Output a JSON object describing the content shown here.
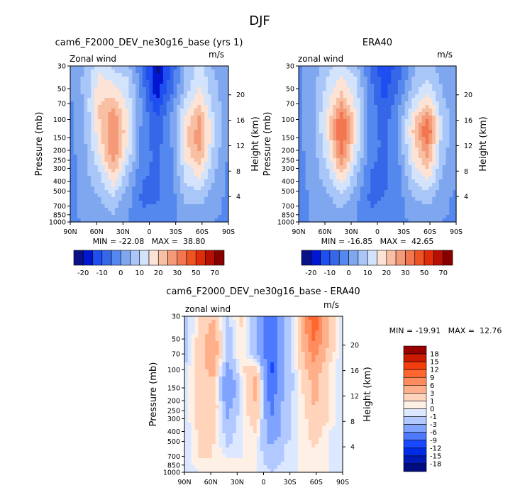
{
  "figure": {
    "title": "DJF",
    "yaxis_label": "Pressure (mb)",
    "yaxis_right_label": "Height (km)",
    "units": "m/s",
    "field_label": "Zonal wind"
  },
  "chart_data": [
    {
      "type": "heatmap",
      "id": "model",
      "title": "cam6_F2000_DEV_ne30g16_base (yrs 1)",
      "field_label": "Zonal wind",
      "units": "m/s",
      "xlabel": "",
      "ylabel": "Pressure (mb)",
      "ylabel_right": "Height (km)",
      "x_ticks": [
        "90N",
        "60N",
        "30N",
        "0",
        "30S",
        "60S",
        "90S"
      ],
      "y_ticks": [
        30,
        50,
        70,
        100,
        150,
        200,
        250,
        300,
        400,
        500,
        700,
        850,
        1000
      ],
      "height_ticks": [
        4,
        8,
        12,
        16,
        20
      ],
      "ylim": [
        1000,
        30
      ],
      "stats": "MIN = -22.08   MAX =  38.80",
      "colorbar_labels": [
        "-20",
        "-10",
        "0",
        "10",
        "20",
        "30",
        "50",
        "70"
      ],
      "levels": [
        -25,
        -20,
        -15,
        -10,
        -5,
        0,
        5,
        10,
        15,
        20,
        25,
        30,
        40,
        50,
        60,
        70
      ],
      "field": [
        [
          0,
          4,
          14,
          8,
          6,
          -4,
          -22,
          -10,
          6,
          12,
          4,
          0
        ],
        [
          1,
          6,
          16,
          14,
          10,
          -4,
          -20,
          -8,
          6,
          14,
          6,
          0
        ],
        [
          0,
          6,
          18,
          18,
          12,
          -2,
          -18,
          -6,
          8,
          16,
          7,
          1
        ],
        [
          -1,
          6,
          20,
          24,
          14,
          -1,
          -14,
          -2,
          12,
          20,
          8,
          1
        ],
        [
          -1,
          5,
          20,
          28,
          16,
          -1,
          -10,
          0,
          16,
          26,
          10,
          1
        ],
        [
          -1,
          5,
          18,
          30,
          16,
          -2,
          -8,
          -1,
          18,
          28,
          10,
          0
        ],
        [
          -1,
          4,
          16,
          30,
          15,
          -2,
          -7,
          -1,
          18,
          28,
          9,
          0
        ],
        [
          -2,
          3,
          14,
          28,
          12,
          -3,
          -6,
          -1,
          16,
          24,
          8,
          -1
        ],
        [
          -2,
          3,
          10,
          22,
          8,
          -4,
          -6,
          -2,
          12,
          18,
          6,
          -1
        ],
        [
          -2,
          3,
          8,
          16,
          5,
          -5,
          -6,
          -2,
          10,
          14,
          4,
          -1
        ],
        [
          -3,
          2,
          5,
          10,
          2,
          -6,
          -6,
          -3,
          6,
          8,
          2,
          -1
        ],
        [
          -2,
          2,
          3,
          6,
          1,
          -5,
          -4,
          -2,
          4,
          4,
          1,
          -1
        ],
        [
          -2,
          1,
          2,
          3,
          0,
          -4,
          -4,
          -2,
          2,
          2,
          0,
          -1
        ]
      ]
    },
    {
      "type": "heatmap",
      "id": "obs",
      "title": "ERA40",
      "field_label": "zonal wind",
      "units": "m/s",
      "xlabel": "",
      "ylabel": "Pressure (mb)",
      "ylabel_right": "Height (km)",
      "x_ticks": [
        "90N",
        "60N",
        "30N",
        "0",
        "30S",
        "60S",
        "90S"
      ],
      "y_ticks": [
        30,
        50,
        70,
        100,
        150,
        200,
        250,
        300,
        400,
        500,
        700,
        850,
        1000
      ],
      "height_ticks": [
        4,
        8,
        12,
        16,
        20
      ],
      "ylim": [
        1000,
        30
      ],
      "stats": "MIN = -16.85   MAX =  42.65",
      "colorbar_labels": [
        "-20",
        "-10",
        "0",
        "10",
        "20",
        "30",
        "50",
        "70"
      ],
      "levels": [
        -25,
        -20,
        -15,
        -10,
        -5,
        0,
        5,
        10,
        15,
        20,
        25,
        30,
        40,
        50,
        60,
        70
      ],
      "field": [
        [
          -1,
          2,
          8,
          12,
          6,
          -6,
          -14,
          -8,
          4,
          8,
          2,
          0
        ],
        [
          -1,
          3,
          10,
          16,
          10,
          -4,
          -13,
          -6,
          5,
          10,
          4,
          0
        ],
        [
          -1,
          3,
          12,
          20,
          12,
          -3,
          -12,
          -4,
          8,
          14,
          5,
          1
        ],
        [
          -1,
          4,
          14,
          26,
          14,
          -2,
          -10,
          -1,
          12,
          20,
          7,
          1
        ],
        [
          -1,
          4,
          16,
          34,
          16,
          -2,
          -8,
          1,
          18,
          30,
          9,
          1
        ],
        [
          -1,
          3,
          16,
          38,
          16,
          -3,
          -7,
          1,
          20,
          36,
          10,
          1
        ],
        [
          -1,
          3,
          14,
          34,
          14,
          -3,
          -6,
          1,
          18,
          30,
          8,
          1
        ],
        [
          -2,
          2,
          12,
          30,
          12,
          -4,
          -6,
          0,
          16,
          26,
          7,
          0
        ],
        [
          -2,
          2,
          9,
          22,
          8,
          -5,
          -6,
          -1,
          12,
          20,
          5,
          0
        ],
        [
          -2,
          2,
          7,
          16,
          5,
          -5,
          -6,
          -1,
          9,
          14,
          4,
          0
        ],
        [
          -2,
          1,
          4,
          9,
          2,
          -6,
          -5,
          -2,
          5,
          8,
          2,
          -1
        ],
        [
          -2,
          1,
          2,
          5,
          0,
          -5,
          -4,
          -2,
          3,
          4,
          1,
          -1
        ],
        [
          -2,
          1,
          1,
          2,
          0,
          -4,
          -3,
          -2,
          1,
          2,
          0,
          -1
        ]
      ]
    },
    {
      "type": "heatmap",
      "id": "diff",
      "title": "cam6_F2000_DEV_ne30g16_base - ERA40",
      "field_label": "zonal wind",
      "units": "m/s",
      "xlabel": "",
      "ylabel": "Pressure (mb)",
      "ylabel_right": "Height (km)",
      "x_ticks": [
        "90N",
        "60N",
        "30N",
        "0",
        "30S",
        "60S",
        "90S"
      ],
      "y_ticks": [
        30,
        50,
        70,
        100,
        150,
        200,
        250,
        300,
        400,
        500,
        700,
        850,
        1000
      ],
      "height_ticks": [
        4,
        8,
        12,
        16,
        20
      ],
      "ylim": [
        1000,
        30
      ],
      "stats": "MIN = -19.91   MAX =  12.76",
      "colorbar_labels": [
        "18",
        "15",
        "12",
        "9",
        "6",
        "3",
        "1",
        "0",
        "-1",
        "-3",
        "-6",
        "-9",
        "-12",
        "-15",
        "-18"
      ],
      "levels": [
        -21,
        -18,
        -15,
        -12,
        -9,
        -6,
        -3,
        -1,
        0,
        1,
        3,
        6,
        9,
        12,
        15,
        18
      ],
      "field": [
        [
          -2,
          1,
          3,
          -1,
          2,
          -3,
          -8,
          -3,
          2,
          12,
          3,
          -1
        ],
        [
          -2,
          1,
          4,
          -2,
          1,
          -3,
          -8,
          -3,
          2,
          11,
          3,
          -1
        ],
        [
          -2,
          2,
          5,
          -2,
          1,
          -3,
          -9,
          -3,
          2,
          9,
          3,
          -1
        ],
        [
          -2,
          2,
          5,
          -2,
          1,
          -2,
          -9,
          -3,
          1,
          7,
          2,
          -1
        ],
        [
          -1,
          2,
          4,
          -4,
          1,
          2,
          -10,
          -3,
          1,
          5,
          1,
          -1
        ],
        [
          -1,
          2,
          3,
          -6,
          0,
          4,
          -9,
          -3,
          0,
          4,
          1,
          -1
        ],
        [
          -1,
          2,
          3,
          -6,
          0,
          4,
          -8,
          -2,
          0,
          4,
          1,
          -1
        ],
        [
          -1,
          2,
          3,
          -4,
          0,
          3,
          -7,
          -2,
          0,
          3,
          1,
          -1
        ],
        [
          -1,
          2,
          2,
          -3,
          0,
          2,
          -6,
          -2,
          0,
          2,
          1,
          -1
        ],
        [
          -1,
          1,
          2,
          -2,
          0,
          1,
          -5,
          -2,
          0,
          2,
          0,
          -1
        ],
        [
          -1,
          1,
          1,
          -1,
          0,
          0,
          -3,
          -1,
          0,
          1,
          0,
          -1
        ],
        [
          -1,
          1,
          1,
          0,
          0,
          0,
          -2,
          -1,
          0,
          1,
          0,
          -1
        ],
        [
          -1,
          0,
          1,
          0,
          0,
          0,
          -1,
          0,
          0,
          0,
          0,
          -1
        ]
      ]
    }
  ],
  "colors": {
    "model_obs_colorbar": [
      "#0a1185",
      "#0016d0",
      "#1f4ff0",
      "#3567e8",
      "#5588ee",
      "#7fa7f0",
      "#a8c6f7",
      "#d3e3fb",
      "#fde3d5",
      "#f8bfa3",
      "#f59a79",
      "#f27650",
      "#ee5322",
      "#e12c09",
      "#b61004",
      "#870000"
    ],
    "diff_colorbar": [
      "#000d80",
      "#001ab3",
      "#002ce6",
      "#1948ff",
      "#4d79ff",
      "#7fa3ff",
      "#b2c9ff",
      "#dce8ff",
      "#fff0e6",
      "#ffd4bb",
      "#ffb08a",
      "#ff8c5d",
      "#ff6630",
      "#f23d0d",
      "#cc1a00",
      "#990000"
    ]
  }
}
